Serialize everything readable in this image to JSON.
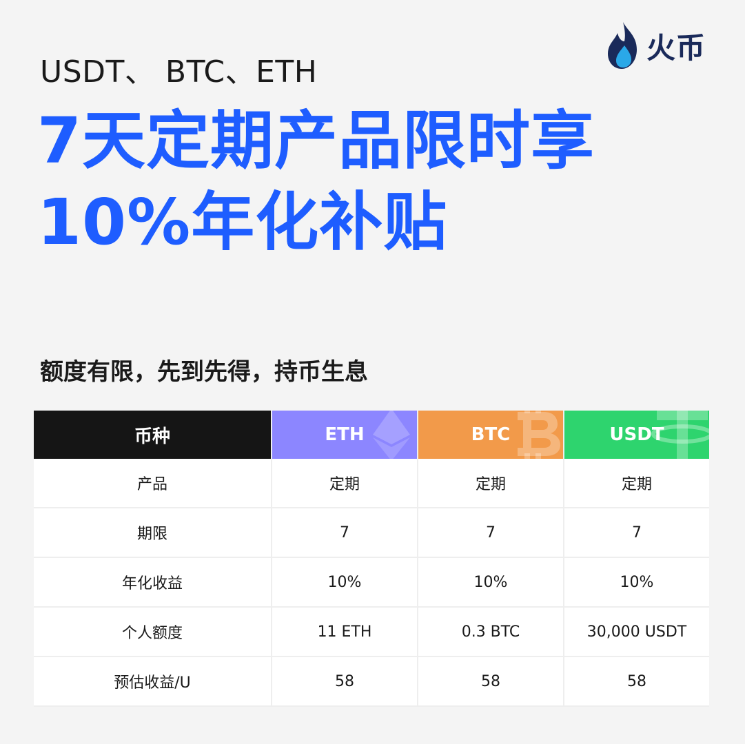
{
  "header": {
    "assets_line": "USDT、 BTC、ETH",
    "headline_line1": "7天定期产品限时享",
    "headline_line2": "10%年化补贴"
  },
  "brand": {
    "name": "火币",
    "icon": "flame-icon"
  },
  "subtitle": "额度有限，先到先得，持币生息",
  "table": {
    "header": {
      "label": "币种",
      "coins": [
        "ETH",
        "BTC",
        "USDT"
      ]
    },
    "rows": [
      {
        "label": "产品",
        "values": [
          "定期",
          "定期",
          "定期"
        ]
      },
      {
        "label": "期限",
        "values": [
          "7",
          "7",
          "7"
        ]
      },
      {
        "label": "年化收益",
        "values": [
          "10%",
          "10%",
          "10%"
        ]
      },
      {
        "label": "个人额度",
        "values": [
          "11 ETH",
          "0.3 BTC",
          "30,000 USDT"
        ]
      },
      {
        "label": "预估收益/U",
        "values": [
          "58",
          "58",
          "58"
        ]
      }
    ]
  },
  "colors": {
    "accent": "#1e5dff",
    "eth": "#8c86ff",
    "btc": "#f29a4a",
    "usdt": "#2ed46e",
    "header_dark": "#151515"
  }
}
